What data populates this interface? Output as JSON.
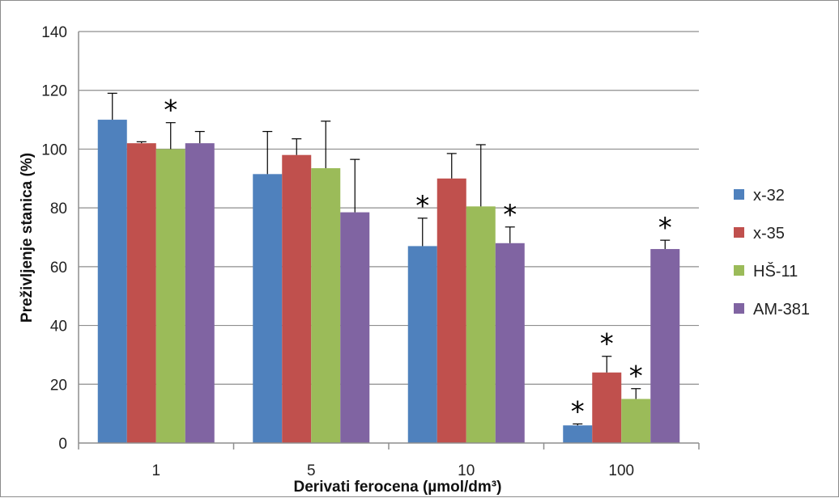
{
  "chart_data": {
    "type": "bar",
    "title": "",
    "xlabel": "Derivati ferocena (µmol/dm³)",
    "ylabel": "Preživljenje stanica (%)",
    "ylim": [
      0,
      140
    ],
    "yticks": [
      0,
      20,
      40,
      60,
      80,
      100,
      120,
      140
    ],
    "grid": true,
    "legend": "right",
    "categories": [
      "1",
      "5",
      "10",
      "100"
    ],
    "series": [
      {
        "name": "x-32",
        "color": "#4f81bd",
        "values": [
          110,
          91.5,
          67,
          6
        ],
        "errors": [
          9,
          14.5,
          9.5,
          0.5
        ],
        "significant": [
          false,
          false,
          true,
          true
        ]
      },
      {
        "name": "x-35",
        "color": "#c0504d",
        "values": [
          102,
          98,
          90,
          24
        ],
        "errors": [
          0.5,
          5.5,
          8.5,
          5.5
        ],
        "significant": [
          false,
          false,
          false,
          true
        ]
      },
      {
        "name": "HŠ-11",
        "color": "#9bbb59",
        "values": [
          100,
          93.5,
          80.5,
          15
        ],
        "errors": [
          9,
          16,
          21,
          3.5
        ],
        "significant": [
          true,
          false,
          false,
          true
        ]
      },
      {
        "name": "AM-381",
        "color": "#8064a2",
        "values": [
          102,
          78.5,
          68,
          66
        ],
        "errors": [
          4,
          18,
          5.5,
          3
        ],
        "significant": [
          false,
          false,
          true,
          true
        ]
      }
    ],
    "significance_marker": "*"
  }
}
